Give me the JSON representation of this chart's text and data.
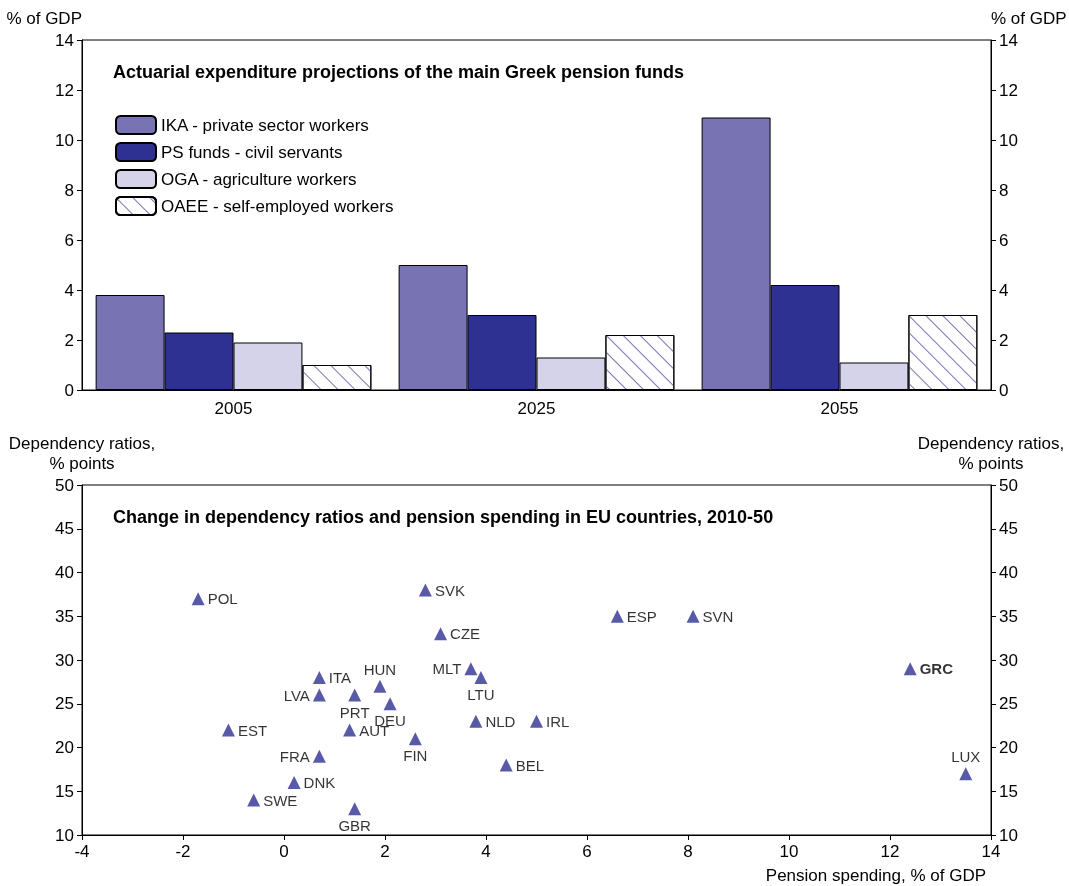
{
  "chart_data": [
    {
      "type": "bar",
      "title": "Actuarial expenditure projections of the main Greek pension funds",
      "ylabel": "% of GDP",
      "y2label": "% of GDP",
      "categories": [
        "2005",
        "2025",
        "2055"
      ],
      "series": [
        {
          "name": "IKA - private sector workers",
          "color": "#7873b3",
          "values": [
            3.8,
            5.0,
            10.9
          ]
        },
        {
          "name": "PS funds - civil servants",
          "color": "#2e3192",
          "values": [
            2.3,
            3.0,
            4.2
          ]
        },
        {
          "name": "OGA - agriculture workers",
          "color": "#d5d3ea",
          "values": [
            1.9,
            1.3,
            1.1
          ]
        },
        {
          "name": "OAEE - self-employed workers",
          "color": "#ffffff",
          "values": [
            1.0,
            2.2,
            3.0
          ]
        }
      ],
      "ylim": [
        0,
        14
      ],
      "yticks": [
        0,
        2,
        4,
        6,
        8,
        10,
        12,
        14
      ],
      "y2lim": [
        0,
        14
      ],
      "y2ticks": [
        0,
        2,
        4,
        6,
        8,
        10,
        12,
        14
      ],
      "grid": false,
      "legend": "top left"
    },
    {
      "type": "scatter",
      "title": "Change in dependency ratios and pension spending in EU countries, 2010-50",
      "xlabel": "Pension spending, % of GDP",
      "ylabel": "Dependency ratios,\n% points",
      "y2label": "Dependency ratios,\n% points",
      "x": [
        -1.7,
        2.8,
        3.1,
        6.6,
        8.1,
        12.4,
        3.7,
        3.9,
        0.7,
        1.9,
        0.7,
        1.4,
        2.1,
        1.3,
        -1.1,
        3.8,
        5.0,
        2.6,
        0.7,
        4.4,
        13.5,
        0.2,
        -0.6,
        1.4
      ],
      "values": [
        37,
        38,
        33,
        35,
        35,
        29,
        29,
        28,
        28,
        27,
        26,
        26,
        25,
        22,
        22,
        23,
        23,
        21,
        19,
        18,
        17,
        16,
        14,
        13
      ],
      "value_labels": [
        "POL",
        "SVK",
        "CZE",
        "ESP",
        "SVN",
        "GRC",
        "MLT",
        "LTU",
        "ITA",
        "HUN",
        "LVA",
        "PRT",
        "DEU",
        "AUT",
        "EST",
        "NLD",
        "IRL",
        "FIN",
        "FRA",
        "BEL",
        "LUX",
        "DNK",
        "SWE",
        "GBR"
      ],
      "color": "#2e3192",
      "marker": "triangle",
      "xlim": [
        -4,
        14
      ],
      "xticks": [
        -4,
        -2,
        0,
        2,
        4,
        6,
        8,
        10,
        12,
        14
      ],
      "ylim": [
        10,
        50
      ],
      "yticks": [
        10,
        15,
        20,
        25,
        30,
        35,
        40,
        45,
        50
      ],
      "y2lim": [
        10,
        50
      ],
      "y2ticks": [
        10,
        15,
        20,
        25,
        30,
        35,
        40,
        45,
        50
      ],
      "grid": false,
      "legend": false
    }
  ]
}
